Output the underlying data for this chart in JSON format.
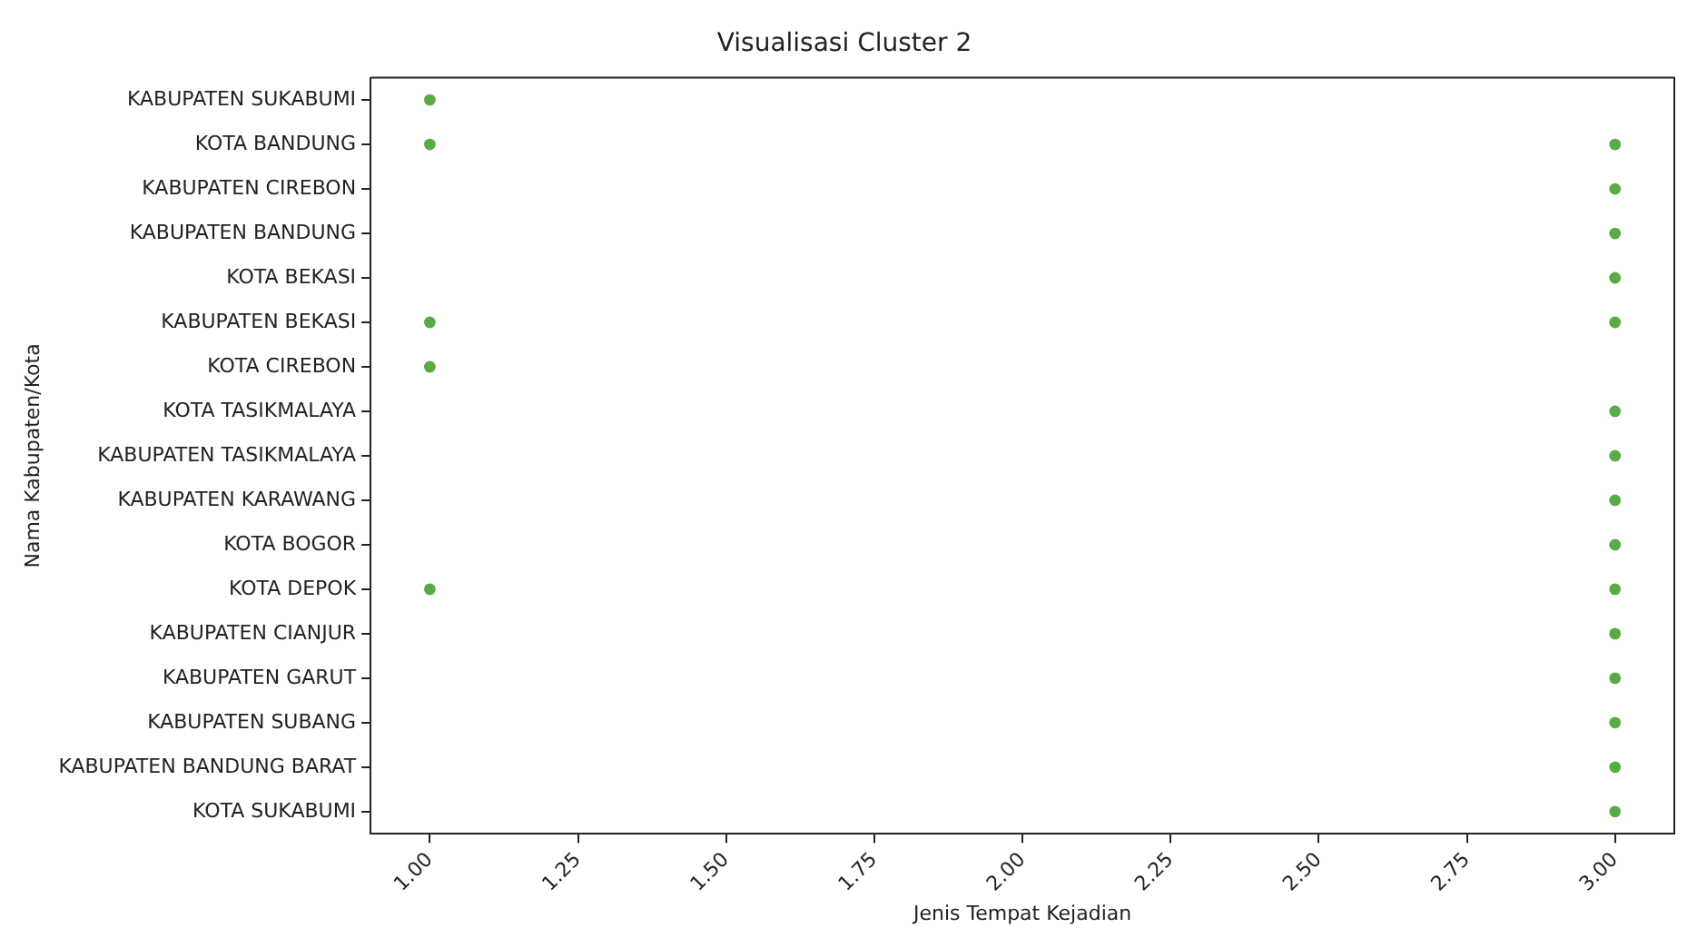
{
  "chart_data": {
    "type": "scatter",
    "orientation": "horizontal",
    "title": "Visualisasi Cluster 2",
    "xlabel": "Jenis Tempat Kejadian",
    "ylabel": "Nama Kabupaten/Kota",
    "categories": [
      "KABUPATEN SUKABUMI",
      "KOTA BANDUNG",
      "KABUPATEN CIREBON",
      "KABUPATEN BANDUNG",
      "KOTA BEKASI",
      "KABUPATEN BEKASI",
      "KOTA CIREBON",
      "KOTA TASIKMALAYA",
      "KABUPATEN TASIKMALAYA",
      "KABUPATEN KARAWANG",
      "KOTA BOGOR",
      "KOTA DEPOK",
      "KABUPATEN CIANJUR",
      "KABUPATEN GARUT",
      "KABUPATEN SUBANG",
      "KABUPATEN BANDUNG BARAT",
      "KOTA SUKABUMI"
    ],
    "series": [
      {
        "color": "#5aab46",
        "values": [
          1,
          1,
          null,
          null,
          null,
          1,
          1,
          null,
          null,
          null,
          null,
          1,
          null,
          null,
          null,
          null,
          null
        ]
      },
      {
        "color": "#5aab46",
        "values": [
          null,
          3,
          3,
          3,
          3,
          3,
          null,
          3,
          3,
          3,
          3,
          3,
          3,
          3,
          3,
          3,
          3
        ]
      }
    ],
    "xlim": [
      0.9,
      3.1
    ],
    "xticks": [
      {
        "value": 1,
        "label": "1.00"
      },
      {
        "value": 1.25,
        "label": "1.25"
      },
      {
        "value": 1.5,
        "label": "1.50"
      },
      {
        "value": 1.75,
        "label": "1.75"
      },
      {
        "value": 2,
        "label": "2.00"
      },
      {
        "value": 2.25,
        "label": "2.25"
      },
      {
        "value": 2.5,
        "label": "2.50"
      },
      {
        "value": 2.75,
        "label": "2.75"
      },
      {
        "value": 3,
        "label": "3.00"
      }
    ],
    "grid": false,
    "legend": false,
    "marker": "circle"
  }
}
